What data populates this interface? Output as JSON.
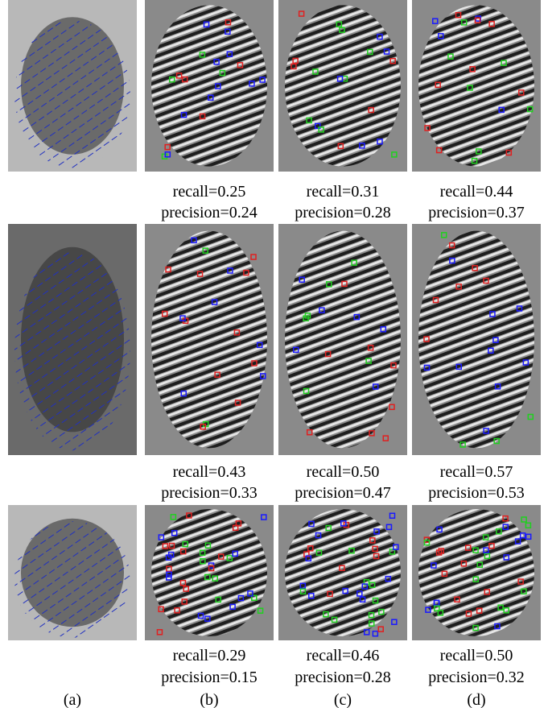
{
  "rows": [
    [
      {
        "recall": "recall=0.25",
        "precision": "precision=0.24"
      },
      {
        "recall": "recall=0.31",
        "precision": "precision=0.28"
      },
      {
        "recall": "recall=0.44",
        "precision": "precision=0.37"
      }
    ],
    [
      {
        "recall": "recall=0.43",
        "precision": "precision=0.33"
      },
      {
        "recall": "recall=0.50",
        "precision": "precision=0.47"
      },
      {
        "recall": "recall=0.57",
        "precision": "precision=0.53"
      }
    ],
    [
      {
        "recall": "recall=0.29",
        "precision": "precision=0.15"
      },
      {
        "recall": "recall=0.46",
        "precision": "precision=0.28"
      },
      {
        "recall": "recall=0.50",
        "precision": "precision=0.32"
      }
    ]
  ],
  "column_labels": [
    "(a)",
    "(b)",
    "(c)",
    "(d)"
  ]
}
